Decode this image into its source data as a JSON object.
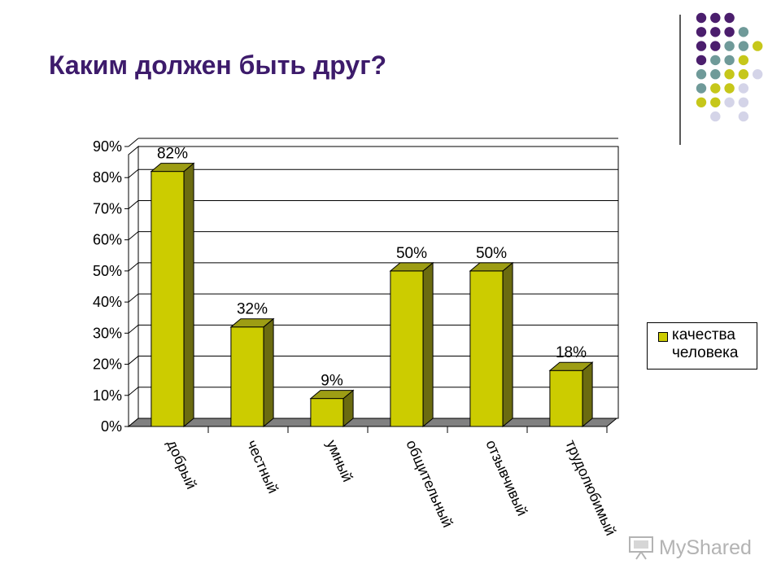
{
  "slide": {
    "title": "Каким должен быть друг?"
  },
  "decoration": {
    "dot_colors": {
      "purple": "#4b1e6d",
      "teal": "#6f9a99",
      "olive": "#c6c71a",
      "lavender": "#d4d4e8"
    },
    "dot_grid": [
      [
        "purple",
        "purple",
        "purple",
        null,
        null
      ],
      [
        "purple",
        "purple",
        "purple",
        "teal",
        null
      ],
      [
        "purple",
        "purple",
        "teal",
        "teal",
        "olive"
      ],
      [
        "purple",
        "teal",
        "teal",
        "olive",
        null
      ],
      [
        "teal",
        "teal",
        "olive",
        "olive",
        "lavender"
      ],
      [
        "teal",
        "olive",
        "olive",
        "lavender",
        null
      ],
      [
        "olive",
        "olive",
        "lavender",
        "lavender",
        null
      ],
      [
        null,
        "lavender",
        null,
        "lavender",
        null
      ]
    ]
  },
  "chart_data": {
    "type": "bar",
    "style": "3d-column",
    "categories": [
      "добрый",
      "честный",
      "умный",
      "общительный",
      "отзывчивый",
      "трудолюбимый"
    ],
    "series": [
      {
        "name": "качества человека",
        "values": [
          82,
          32,
          9,
          50,
          50,
          18
        ],
        "color": "#cccc00",
        "side_color": "#6b6b10",
        "top_color": "#9d9d14"
      }
    ],
    "data_labels": [
      "82%",
      "32%",
      "9%",
      "50%",
      "50%",
      "18%"
    ],
    "y_ticks": [
      "0%",
      "10%",
      "20%",
      "30%",
      "40%",
      "50%",
      "60%",
      "70%",
      "80%",
      "90%"
    ],
    "ylim": [
      0,
      90
    ],
    "grid": true,
    "legend_position": "right"
  },
  "legend": {
    "label_line1": "качества",
    "label_line2": "человека"
  },
  "watermark": {
    "text": "MyShared"
  }
}
